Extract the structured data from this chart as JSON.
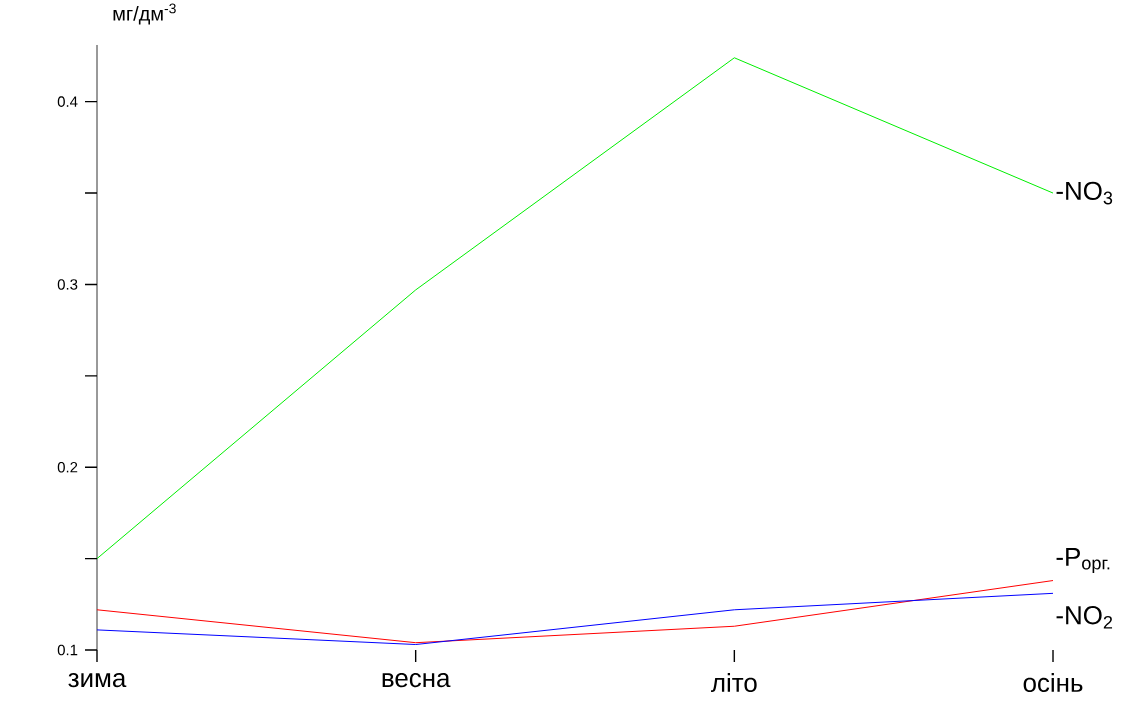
{
  "chart_data": {
    "type": "line",
    "ylabel": "мг/дм$^{-3}$",
    "categories": [
      "зима",
      "весна",
      "літо",
      "осінь"
    ],
    "series": [
      {
        "name": "-NO$_{3}$",
        "color": "#00ee00",
        "values": [
          0.15,
          0.297,
          0.424,
          0.35
        ]
      },
      {
        "name": "-P$_{орг.}$",
        "color": "#ff0000",
        "values": [
          0.122,
          0.104,
          0.113,
          0.138
        ]
      },
      {
        "name": "-NO$_{2}$",
        "color": "#0000ff",
        "values": [
          0.111,
          0.103,
          0.122,
          0.131
        ]
      }
    ],
    "ylim": [
      0.1,
      0.431
    ],
    "yticks": [
      0.1,
      0.2,
      0.3,
      0.4
    ]
  }
}
